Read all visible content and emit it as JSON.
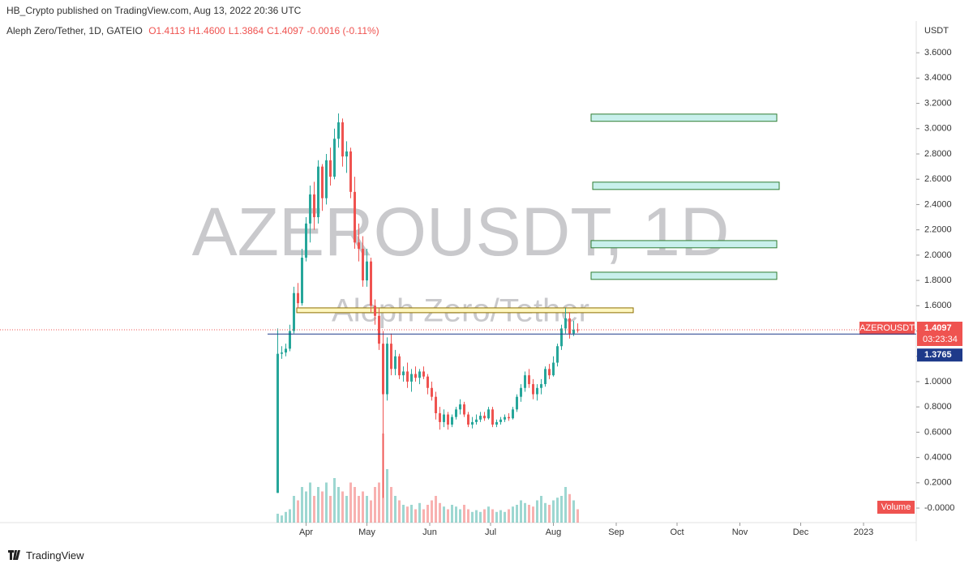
{
  "header": "HB_Crypto published on TradingView.com, Aug 13, 2022 20:36 UTC",
  "legend": {
    "symbol": "Aleph Zero/Tether, 1D, GATEIO",
    "open": "O1.4113",
    "high": "H1.4600",
    "low": "L1.3864",
    "close": "C1.4097",
    "change": "-0.0016 (-0.11%)"
  },
  "footer": "TradingView",
  "chart_data": {
    "type": "candlestick",
    "title": "AZEROUSDT, 1D",
    "subtitle": "Aleph Zero/Tether",
    "y_unit": "USDT",
    "up_color": "#26a69a",
    "down_color": "#ef5350",
    "x": [
      17,
      19,
      21,
      23,
      25,
      27,
      29,
      31,
      33,
      35,
      37,
      39,
      41,
      43,
      45,
      47,
      49,
      51,
      53,
      55,
      57,
      59,
      61,
      63,
      65,
      67,
      69,
      71,
      73,
      75,
      77,
      79,
      81,
      83,
      85,
      87,
      89,
      91,
      93,
      95,
      97,
      99,
      101,
      103,
      105,
      107,
      109,
      111,
      113,
      115,
      117,
      119,
      121,
      123,
      125,
      127,
      129,
      131,
      133,
      135,
      137,
      139,
      141,
      143,
      145,
      147,
      149,
      151,
      153,
      155,
      157,
      159,
      161,
      163,
      165
    ],
    "open": [
      0.12,
      1.22,
      1.23,
      1.26,
      1.4,
      1.7,
      1.62,
      1.98,
      2.25,
      2.48,
      2.3,
      2.7,
      2.45,
      2.75,
      2.62,
      2.92,
      3.05,
      2.78,
      2.82,
      2.5,
      2.1,
      2.05,
      1.8,
      1.95,
      1.6,
      1.52,
      1.3,
      0.9,
      1.3,
      1.1,
      1.2,
      1.05,
      1.08,
      1.0,
      1.06,
      1.03,
      1.08,
      1.04,
      0.95,
      0.88,
      0.75,
      0.68,
      0.74,
      0.66,
      0.72,
      0.78,
      0.82,
      0.74,
      0.66,
      0.68,
      0.7,
      0.73,
      0.71,
      0.78,
      0.66,
      0.68,
      0.7,
      0.72,
      0.71,
      0.78,
      0.88,
      0.95,
      1.05,
      0.98,
      0.9,
      0.95,
      0.98,
      1.1,
      1.05,
      1.15,
      1.28,
      1.42,
      1.5,
      1.38,
      1.4113
    ],
    "high": [
      1.42,
      1.28,
      1.3,
      1.45,
      1.75,
      1.78,
      2.05,
      2.3,
      2.55,
      2.58,
      2.75,
      2.72,
      2.8,
      2.85,
      3.0,
      3.12,
      3.08,
      2.9,
      2.85,
      2.62,
      2.25,
      2.15,
      2.05,
      1.98,
      1.65,
      1.58,
      1.4,
      1.35,
      1.38,
      1.25,
      1.22,
      1.12,
      1.15,
      1.1,
      1.12,
      1.1,
      1.12,
      1.06,
      1.0,
      0.92,
      0.8,
      0.78,
      0.76,
      0.74,
      0.8,
      0.86,
      0.84,
      0.76,
      0.72,
      0.74,
      0.76,
      0.76,
      0.8,
      0.8,
      0.7,
      0.72,
      0.74,
      0.75,
      0.8,
      0.9,
      0.98,
      1.08,
      1.1,
      1.02,
      0.98,
      1.02,
      1.12,
      1.14,
      1.2,
      1.3,
      1.45,
      1.58,
      1.55,
      1.48,
      1.46
    ],
    "low": [
      0.12,
      1.18,
      1.2,
      1.24,
      1.38,
      1.58,
      1.6,
      1.95,
      2.1,
      2.2,
      2.25,
      2.35,
      2.4,
      2.55,
      2.6,
      2.85,
      2.7,
      2.65,
      2.45,
      2.05,
      1.95,
      1.75,
      1.75,
      1.55,
      1.45,
      1.25,
      0.08,
      0.85,
      1.05,
      1.05,
      1.02,
      1.0,
      0.95,
      0.92,
      1.0,
      0.98,
      1.02,
      0.9,
      0.85,
      0.7,
      0.62,
      0.64,
      0.62,
      0.64,
      0.7,
      0.74,
      0.72,
      0.64,
      0.63,
      0.66,
      0.68,
      0.69,
      0.7,
      0.64,
      0.64,
      0.66,
      0.68,
      0.69,
      0.7,
      0.76,
      0.84,
      0.92,
      0.95,
      0.86,
      0.85,
      0.9,
      0.96,
      1.02,
      1.04,
      1.12,
      1.25,
      1.38,
      1.34,
      1.36,
      1.3864
    ],
    "close": [
      1.22,
      1.23,
      1.26,
      1.4,
      1.7,
      1.62,
      1.98,
      2.25,
      2.48,
      2.3,
      2.7,
      2.45,
      2.75,
      2.62,
      2.92,
      3.05,
      2.78,
      2.82,
      2.5,
      2.1,
      2.05,
      1.8,
      1.95,
      1.6,
      1.52,
      1.3,
      0.9,
      1.3,
      1.1,
      1.2,
      1.05,
      1.08,
      1.0,
      1.06,
      1.03,
      1.08,
      1.04,
      0.95,
      0.88,
      0.75,
      0.68,
      0.74,
      0.66,
      0.72,
      0.78,
      0.82,
      0.74,
      0.66,
      0.68,
      0.7,
      0.73,
      0.71,
      0.78,
      0.66,
      0.68,
      0.7,
      0.72,
      0.71,
      0.78,
      0.88,
      0.95,
      1.05,
      0.98,
      0.9,
      0.95,
      0.98,
      1.1,
      1.05,
      1.15,
      1.28,
      1.42,
      1.5,
      1.38,
      1.41,
      1.4097
    ],
    "volume": [
      10,
      8,
      12,
      15,
      30,
      25,
      40,
      35,
      45,
      30,
      40,
      35,
      45,
      30,
      50,
      40,
      35,
      30,
      45,
      40,
      30,
      35,
      30,
      25,
      40,
      45,
      100,
      60,
      40,
      30,
      25,
      20,
      18,
      20,
      15,
      22,
      15,
      20,
      25,
      30,
      22,
      18,
      15,
      20,
      18,
      15,
      20,
      15,
      12,
      14,
      12,
      15,
      18,
      15,
      12,
      14,
      12,
      15,
      18,
      20,
      25,
      22,
      20,
      18,
      25,
      30,
      22,
      20,
      25,
      28,
      30,
      40,
      32,
      25,
      15
    ],
    "volume_label": "Volume",
    "xlim": [
      -120,
      332
    ],
    "xticks": [
      {
        "value": 31,
        "label": "Apr"
      },
      {
        "value": 61,
        "label": "May"
      },
      {
        "value": 92,
        "label": "Jun"
      },
      {
        "value": 122,
        "label": "Jul"
      },
      {
        "value": 153,
        "label": "Aug"
      },
      {
        "value": 184,
        "label": "Sep"
      },
      {
        "value": 214,
        "label": "Oct"
      },
      {
        "value": 245,
        "label": "Nov"
      },
      {
        "value": 275,
        "label": "Dec"
      },
      {
        "value": 306,
        "label": "2023"
      }
    ],
    "ylim": [
      -0.115,
      3.825
    ],
    "yticks": [
      {
        "value": 0,
        "label": "-0.0000"
      },
      {
        "value": 0.2,
        "label": "0.2000"
      },
      {
        "value": 0.4,
        "label": "0.4000"
      },
      {
        "value": 0.6,
        "label": "0.6000"
      },
      {
        "value": 0.8,
        "label": "0.8000"
      },
      {
        "value": 1,
        "label": "1.0000"
      },
      {
        "value": 1.2,
        "label": "1.2000"
      },
      {
        "value": 1.4,
        "label": "1.4000"
      },
      {
        "value": 1.6,
        "label": "1.6000"
      },
      {
        "value": 1.8,
        "label": "1.8000"
      },
      {
        "value": 2,
        "label": "2.0000"
      },
      {
        "value": 2.2,
        "label": "2.2000"
      },
      {
        "value": 2.4,
        "label": "2.4000"
      },
      {
        "value": 2.6,
        "label": "2.6000"
      },
      {
        "value": 2.8,
        "label": "2.8000"
      },
      {
        "value": 3,
        "label": "3.0000"
      },
      {
        "value": 3.2,
        "label": "3.2000"
      },
      {
        "value": 3.4,
        "label": "3.4000"
      },
      {
        "value": 3.6,
        "label": "3.6000"
      }
    ],
    "zones": [
      {
        "x": [
          171.6,
          263.2
        ],
        "y": [
          3.058,
          3.115
        ],
        "color": "#c8f0ec",
        "stroke": "#2e7d32"
      },
      {
        "x": [
          172.4,
          264.4
        ],
        "y": [
          2.519,
          2.577
        ],
        "color": "#c8f0ec",
        "stroke": "#2e7d32"
      },
      {
        "x": [
          171.6,
          263.2
        ],
        "y": [
          2.058,
          2.115
        ],
        "color": "#c8f0ec",
        "stroke": "#2e7d32"
      },
      {
        "x": [
          171.6,
          263.2
        ],
        "y": [
          1.808,
          1.865
        ],
        "color": "#c8f0ec",
        "stroke": "#2e7d32"
      },
      {
        "x": [
          26.4,
          192.4
        ],
        "y": [
          1.545,
          1.583
        ],
        "color": "#fff7c0",
        "stroke": "#8d6e00"
      }
    ],
    "price_lines": [
      {
        "value": 1.4097,
        "label": "1.4097",
        "color": "#ef5350",
        "dash": true,
        "tag": "AZEROUSDT",
        "timer": "03:23:34"
      },
      {
        "value": 1.3765,
        "label": "1.3765",
        "color": "#1e3a8a",
        "dash": false,
        "from": 12
      }
    ]
  }
}
